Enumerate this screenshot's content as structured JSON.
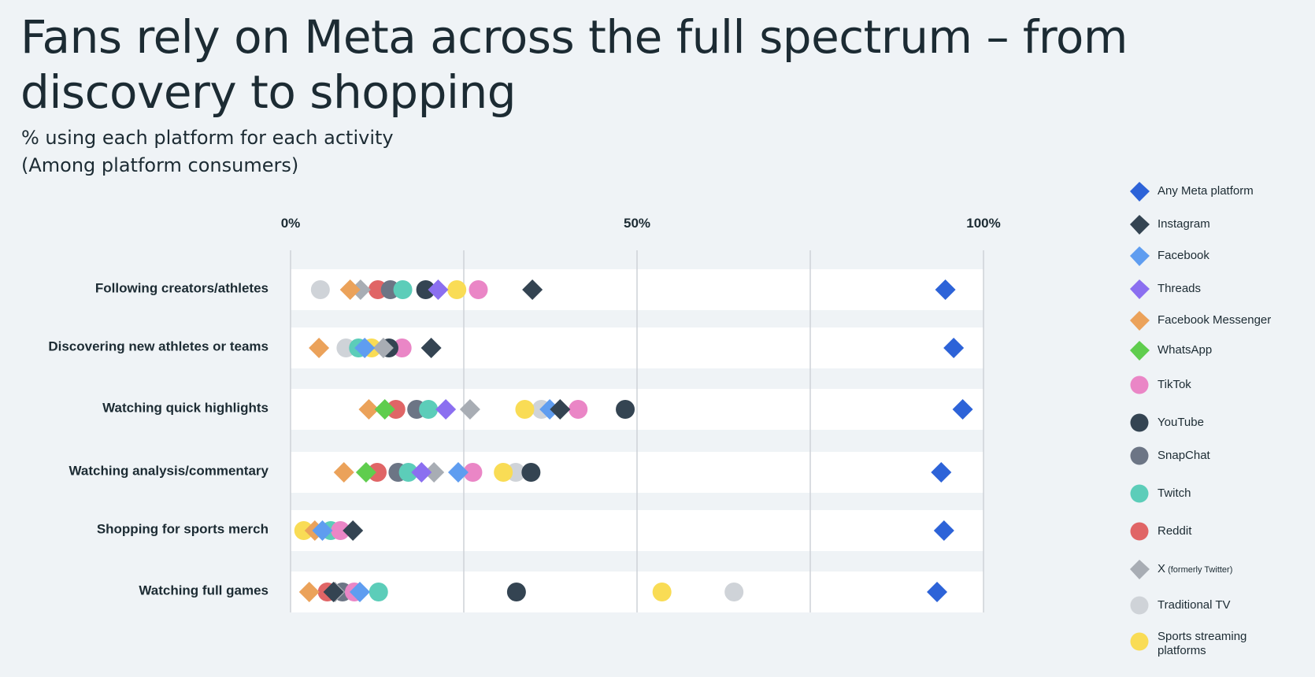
{
  "title": "Fans rely on Meta across the full spectrum – from discovery to shopping",
  "subtitle_line1": "% using each platform for each activity",
  "subtitle_line2": "(Among platform consumers)",
  "legend": [
    {
      "name": "Any Meta platform",
      "shape": "diamond",
      "color": "#2d63d8"
    },
    {
      "name": "Instagram",
      "shape": "diamond",
      "color": "#344452"
    },
    {
      "name": "Facebook",
      "shape": "diamond",
      "color": "#5f9df0"
    },
    {
      "name": "Threads",
      "shape": "diamond",
      "color": "#8b6ff0"
    },
    {
      "name": "Facebook Messenger",
      "shape": "diamond",
      "color": "#eba25a"
    },
    {
      "name": "WhatsApp",
      "shape": "diamond",
      "color": "#5fcd4e"
    },
    {
      "name": "TikTok",
      "shape": "circle",
      "color": "#ea86c6"
    },
    {
      "name": "YouTube",
      "shape": "circle",
      "color": "#344452"
    },
    {
      "name": "SnapChat",
      "shape": "circle",
      "color": "#6c7585"
    },
    {
      "name": "Twitch",
      "shape": "circle",
      "color": "#5ccdb9"
    },
    {
      "name": "Reddit",
      "shape": "circle",
      "color": "#e06566"
    },
    {
      "name": "X",
      "name_suffix": "(formerly Twitter)",
      "shape": "diamond",
      "color": "#a8adb4"
    },
    {
      "name": "Traditional TV",
      "shape": "circle",
      "color": "#cfd3d8"
    },
    {
      "name": "Sports streaming platforms",
      "shape": "circle",
      "color": "#f9dc55"
    }
  ],
  "chart_data": {
    "type": "scatter",
    "title": "Fans rely on Meta across the full spectrum – from discovery to shopping",
    "subtitle": "% using each platform for each activity (Among platform consumers)",
    "x_ticks": [
      "0%",
      "50%",
      "100%"
    ],
    "xlim": [
      0,
      100
    ],
    "grid": true,
    "legend_position": "right",
    "categories": [
      "Following creators/athletes",
      "Discovering new athletes or teams",
      "Watching quick highlights",
      "Watching analysis/commentary",
      "Shopping for sports merch",
      "Watching full games"
    ],
    "series": [
      {
        "name": "Any Meta platform",
        "values": [
          94.5,
          95.7,
          97,
          93.9,
          94.3,
          93.3
        ]
      },
      {
        "name": "Instagram",
        "values": [
          34.9,
          20.3,
          38.9,
          0,
          9,
          6.2
        ]
      },
      {
        "name": "Facebook",
        "values": [
          0,
          10.7,
          37.4,
          24.2,
          4.6,
          10
        ]
      },
      {
        "name": "Threads",
        "values": [
          21.3,
          0,
          22.4,
          18.9,
          0,
          0
        ]
      },
      {
        "name": "Facebook Messenger",
        "values": [
          8.6,
          4.1,
          11.3,
          7.7,
          3.5,
          2.7
        ]
      },
      {
        "name": "WhatsApp",
        "values": [
          0,
          0,
          13.6,
          10.9,
          0,
          0
        ]
      },
      {
        "name": "TikTok",
        "values": [
          27.1,
          16.1,
          41.5,
          26.3,
          7.2,
          9.2
        ]
      },
      {
        "name": "YouTube",
        "values": [
          19.5,
          14.2,
          48.3,
          34.7,
          0,
          32.6
        ]
      },
      {
        "name": "SnapChat",
        "values": [
          14.4,
          0,
          18.2,
          15.5,
          0,
          7.5
        ]
      },
      {
        "name": "Twitch",
        "values": [
          16.2,
          9.8,
          19.9,
          17,
          5.8,
          12.7
        ]
      },
      {
        "name": "Reddit",
        "values": [
          12.6,
          0,
          15.2,
          12.5,
          0,
          5.3
        ]
      },
      {
        "name": "X",
        "values": [
          10.1,
          13.4,
          25.9,
          20.7,
          0,
          6.4
        ]
      },
      {
        "name": "Traditional TV",
        "values": [
          4.3,
          8,
          36.2,
          32.5,
          0,
          64
        ]
      },
      {
        "name": "Sports streaming platforms",
        "values": [
          24,
          11.7,
          33.8,
          30.7,
          1.9,
          53.6
        ]
      }
    ]
  }
}
